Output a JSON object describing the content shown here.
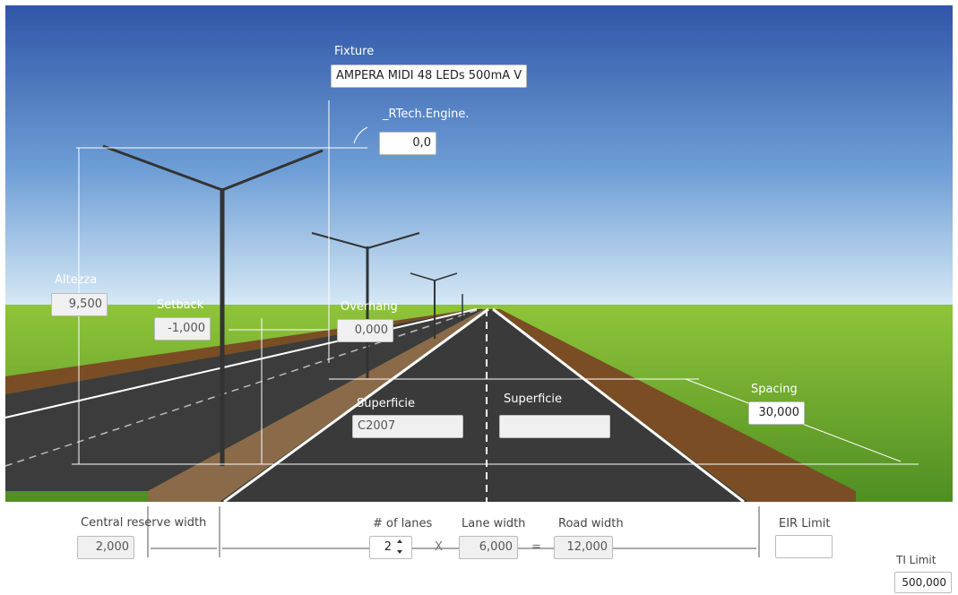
{
  "fixture": {
    "label": "Fixture",
    "value": "AMPERA MIDI 48 LEDs 500mA V"
  },
  "tilt": {
    "label": "_RTech.Engine.",
    "value": "0,0"
  },
  "height": {
    "label": "Altezza",
    "value": "9,500"
  },
  "setback": {
    "label": "Setback",
    "value": "-1,000"
  },
  "overhang": {
    "label": "Overhang",
    "value": "0,000"
  },
  "surface_left": {
    "label": "Superficie",
    "value": "C2007"
  },
  "surface_right": {
    "label": "Superficie"
  },
  "spacing": {
    "label": "Spacing",
    "value": "30,000"
  },
  "central_reserve": {
    "label": "Central reserve width",
    "value": "2,000"
  },
  "lanes": {
    "label": "# of lanes",
    "value": "2"
  },
  "times": "X",
  "lane_width": {
    "label": "Lane width",
    "value": "6,000"
  },
  "equals": "=",
  "road_width": {
    "label": "Road width",
    "value": "12,000"
  },
  "eir_limit": {
    "label": "EIR Limit"
  },
  "ti_limit": {
    "label": "TI Limit",
    "value": "500,000"
  }
}
